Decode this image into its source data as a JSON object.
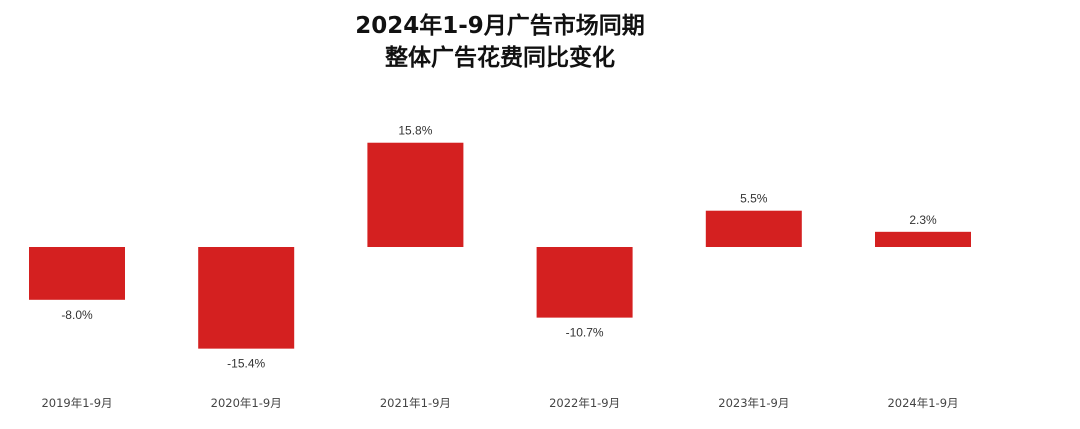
{
  "chart_data": {
    "type": "bar",
    "title_line1": "2024年1-9月广告市场同期",
    "title_line2": "整体广告花费同比变化",
    "xlabel": "",
    "ylabel": "",
    "categories": [
      "2019年1-9月",
      "2020年1-9月",
      "2021年1-9月",
      "2022年1-9月",
      "2023年1-9月",
      "2024年1-9月"
    ],
    "values": [
      -8.0,
      -15.4,
      15.8,
      -10.7,
      5.5,
      2.3
    ],
    "value_labels": [
      "-8.0%",
      "-15.4%",
      "15.8%",
      "-10.7%",
      "5.5%",
      "2.3%"
    ],
    "unit": "%",
    "bar_color": "#d42020",
    "grid": false,
    "legend": "none"
  }
}
